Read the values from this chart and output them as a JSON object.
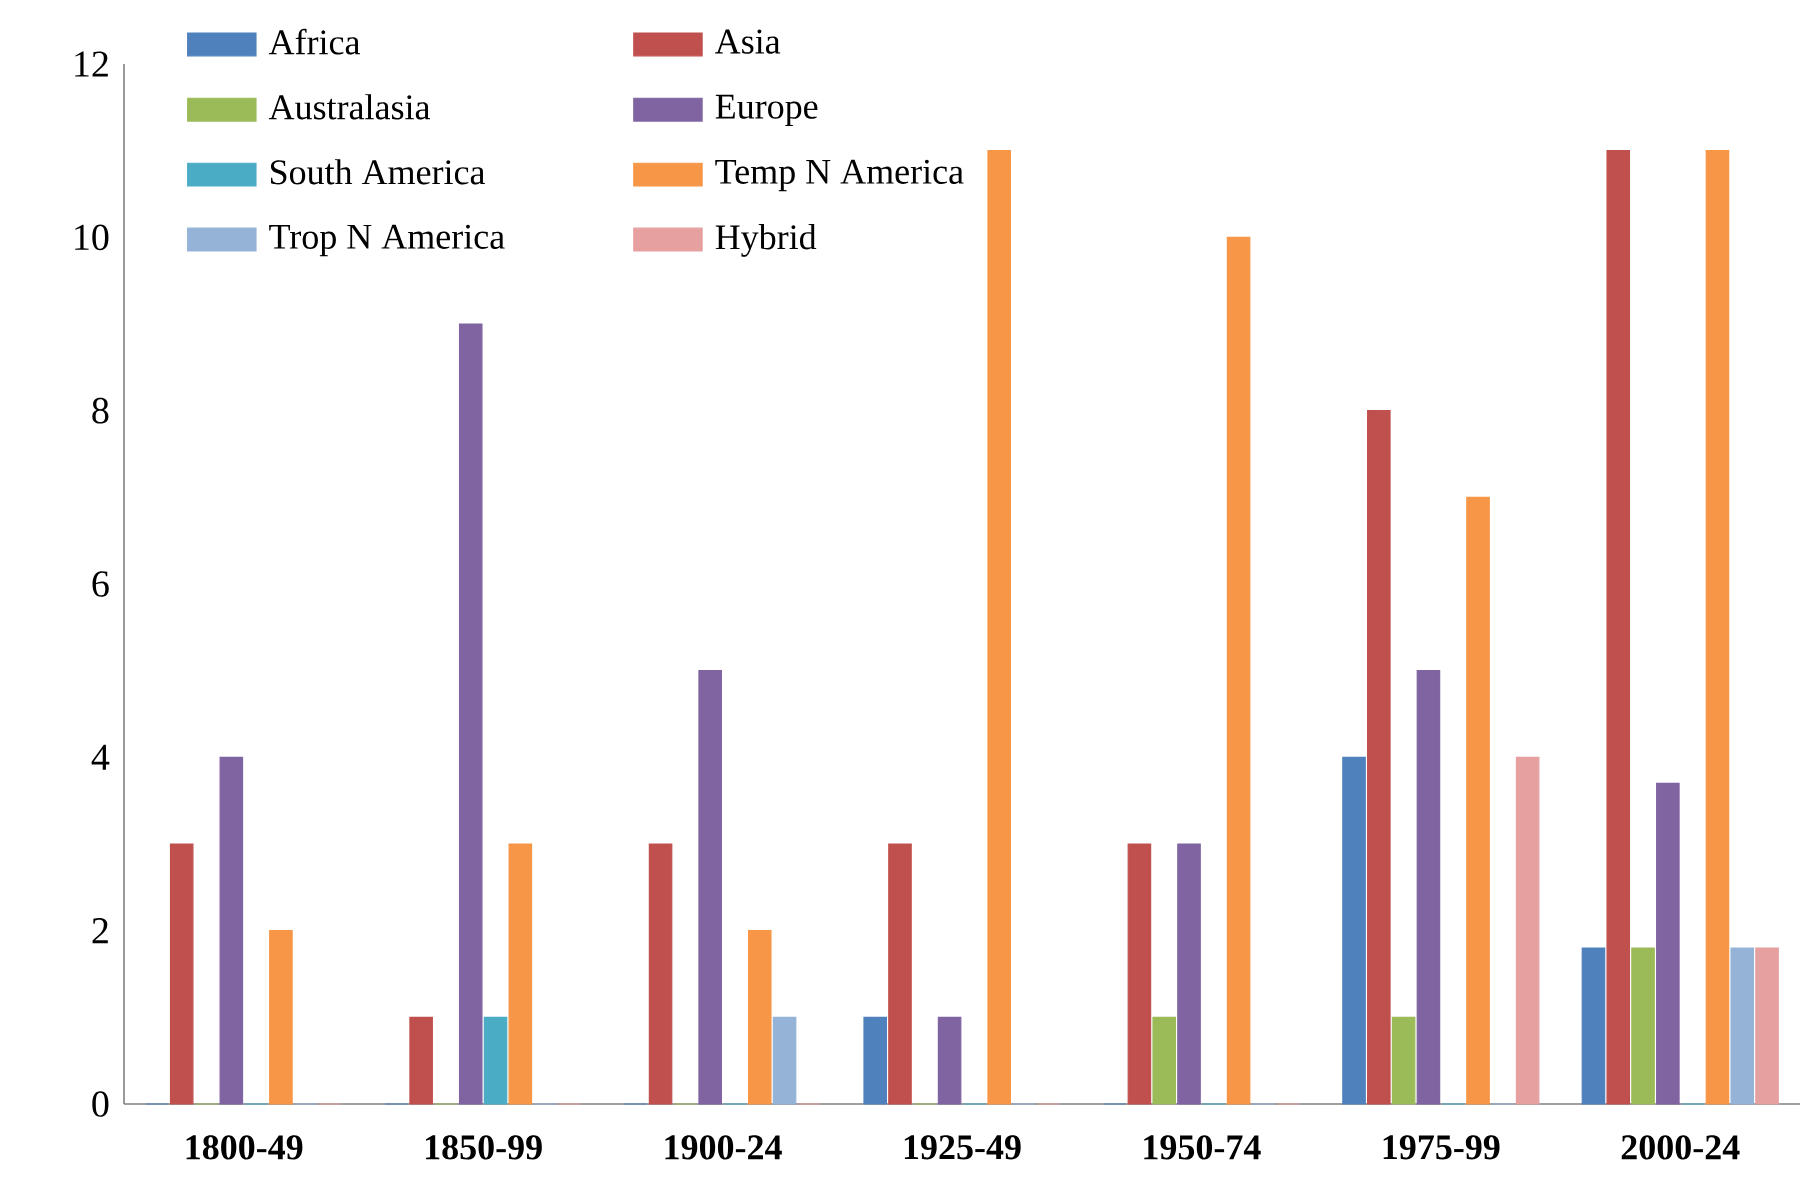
{
  "chart_data": {
    "type": "bar",
    "categories": [
      "1800-49",
      "1850-99",
      "1900-24",
      "1925-49",
      "1950-74",
      "1975-99",
      "2000-24"
    ],
    "series": [
      {
        "name": "Africa",
        "color": "#4f81bd",
        "values": [
          0,
          0,
          0,
          1,
          0,
          4,
          1.8
        ]
      },
      {
        "name": "Asia",
        "color": "#c0504d",
        "values": [
          3,
          1,
          3,
          3,
          3,
          8,
          11
        ]
      },
      {
        "name": "Australasia",
        "color": "#9bbb59",
        "values": [
          0,
          0,
          0,
          0,
          1,
          1,
          1.8
        ]
      },
      {
        "name": "Europe",
        "color": "#8064a2",
        "values": [
          4,
          9,
          5,
          1,
          3,
          5,
          3.7
        ]
      },
      {
        "name": "South America",
        "color": "#4bacc6",
        "values": [
          0,
          1,
          0,
          0,
          0,
          0,
          0
        ]
      },
      {
        "name": "Temp N America",
        "color": "#f79646",
        "values": [
          2,
          3,
          2,
          11,
          10,
          7,
          11
        ]
      },
      {
        "name": "Trop N America",
        "color": "#95b3d7",
        "values": [
          0,
          0,
          1,
          0,
          0,
          0,
          1.8
        ]
      },
      {
        "name": "Hybrid",
        "color": "#e6a0a0",
        "values": [
          0,
          0,
          0,
          0,
          0,
          4,
          1.8
        ]
      }
    ],
    "ylim": [
      0,
      12
    ],
    "yticks": [
      0,
      2,
      4,
      6,
      8,
      10,
      12
    ],
    "grid": false,
    "legend": "top left"
  }
}
